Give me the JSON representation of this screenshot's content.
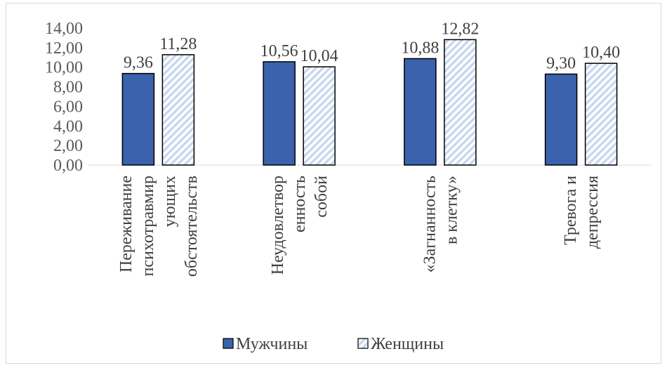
{
  "chart_data": {
    "type": "bar",
    "title": "",
    "xlabel": "",
    "ylabel": "",
    "ylim": [
      0,
      14
    ],
    "yticks": [
      "0,00",
      "2,00",
      "4,00",
      "6,00",
      "8,00",
      "10,00",
      "12,00",
      "14,00"
    ],
    "categories": [
      [
        "Переживание",
        "психотравмир",
        "ующих",
        "обстоятельств"
      ],
      [
        "Неудовлетвор",
        "енность",
        "собой"
      ],
      [
        "«Загнанность",
        "в клетку»"
      ],
      [
        "Тревога и",
        "депрессия"
      ]
    ],
    "series": [
      {
        "name": "Мужчины",
        "values": [
          9.36,
          10.56,
          10.88,
          9.3
        ],
        "labels": [
          "9,36",
          "10,56",
          "10,88",
          "9,30"
        ],
        "color": "#3a62ad",
        "pattern": "solid"
      },
      {
        "name": "Женщины",
        "values": [
          11.28,
          10.04,
          12.82,
          10.4
        ],
        "labels": [
          "11,28",
          "10,04",
          "12,82",
          "10,40"
        ],
        "color": "#dce6f4",
        "pattern": "diagonal-hatch"
      }
    ],
    "legend": "bottom",
    "grid": false
  }
}
